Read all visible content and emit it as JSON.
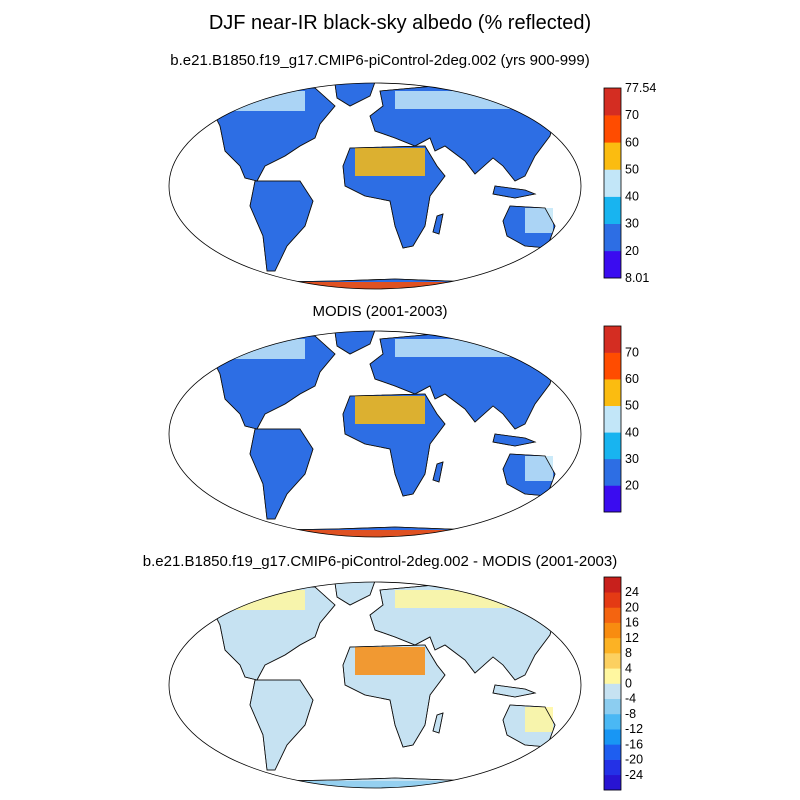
{
  "figure": {
    "title": "DJF near-IR black-sky albedo (% reflected)"
  },
  "panels": [
    {
      "id": "model",
      "subtitle": "b.e21.B1850.f19_g17.CMIP6-piControl-2deg.002 (yrs 900-999)",
      "colorbar": {
        "colors": [
          "#3a0cf0",
          "#2d6ee4",
          "#18b4f0",
          "#c2e6f8",
          "#fbbc10",
          "#ff4c00",
          "#d42d22"
        ],
        "tick_labels": [
          "8.01",
          "20",
          "30",
          "40",
          "50",
          "60",
          "70",
          "77.54"
        ]
      }
    },
    {
      "id": "obs",
      "subtitle": "MODIS (2001-2003)",
      "colorbar": {
        "colors": [
          "#3a0cf0",
          "#2d6ee4",
          "#18b4f0",
          "#c2e6f8",
          "#fbbc10",
          "#ff4c00",
          "#d42d22"
        ],
        "tick_labels": [
          "20",
          "30",
          "40",
          "50",
          "60",
          "70"
        ]
      }
    },
    {
      "id": "diff",
      "subtitle": "b.e21.B1850.f19_g17.CMIP6-piControl-2deg.002 - MODIS (2001-2003)",
      "colorbar": {
        "colors": [
          "#2814d2",
          "#2431e6",
          "#1e5ef0",
          "#1896f4",
          "#4ab8f4",
          "#8ccdf0",
          "#c6e2f2",
          "#fff7a0",
          "#fcd060",
          "#fcb224",
          "#f88c10",
          "#f46410",
          "#e43a14",
          "#c8201c"
        ],
        "tick_labels": [
          "24",
          "20",
          "16",
          "12",
          "8",
          "4",
          "0",
          "-4",
          "-8",
          "-12",
          "-16",
          "-20",
          "-24"
        ]
      }
    }
  ]
}
